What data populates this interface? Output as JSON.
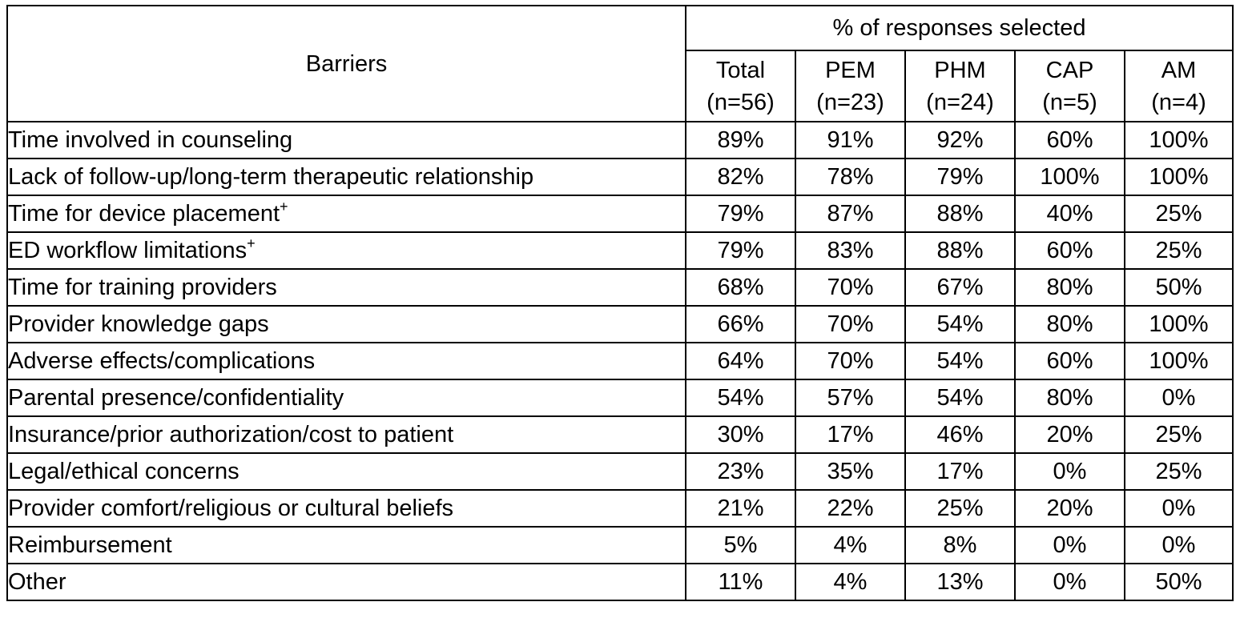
{
  "table": {
    "row_header": "Barriers",
    "group_header": "% of responses selected",
    "columns": [
      {
        "name": "Total",
        "n": "(n=56)"
      },
      {
        "name": "PEM",
        "n": "(n=23)"
      },
      {
        "name": "PHM",
        "n": "(n=24)"
      },
      {
        "name": "CAP",
        "n": "(n=5)"
      },
      {
        "name": "AM",
        "n": "(n=4)"
      }
    ],
    "rows": [
      {
        "label": "Time involved in counseling",
        "mark": "",
        "values": [
          "89%",
          "91%",
          "92%",
          "60%",
          "100%"
        ]
      },
      {
        "label": "Lack of follow-up/long-term therapeutic relationship",
        "mark": "",
        "values": [
          "82%",
          "78%",
          "79%",
          "100%",
          "100%"
        ]
      },
      {
        "label": "Time for device placement",
        "mark": "+",
        "values": [
          "79%",
          "87%",
          "88%",
          "40%",
          "25%"
        ]
      },
      {
        "label": "ED workflow limitations",
        "mark": "+",
        "values": [
          "79%",
          "83%",
          "88%",
          "60%",
          "25%"
        ]
      },
      {
        "label": "Time for training providers",
        "mark": "",
        "values": [
          "68%",
          "70%",
          "67%",
          "80%",
          "50%"
        ]
      },
      {
        "label": "Provider knowledge gaps",
        "mark": "",
        "values": [
          "66%",
          "70%",
          "54%",
          "80%",
          "100%"
        ]
      },
      {
        "label": "Adverse effects/complications",
        "mark": "",
        "values": [
          "64%",
          "70%",
          "54%",
          "60%",
          "100%"
        ]
      },
      {
        "label": "Parental presence/confidentiality",
        "mark": "",
        "values": [
          "54%",
          "57%",
          "54%",
          "80%",
          "0%"
        ]
      },
      {
        "label": "Insurance/prior authorization/cost to patient",
        "mark": "",
        "values": [
          "30%",
          "17%",
          "46%",
          "20%",
          "25%"
        ]
      },
      {
        "label": "Legal/ethical concerns",
        "mark": "",
        "values": [
          "23%",
          "35%",
          "17%",
          "0%",
          "25%"
        ]
      },
      {
        "label": "Provider comfort/religious or cultural beliefs",
        "mark": "",
        "values": [
          "21%",
          "22%",
          "25%",
          "20%",
          "0%"
        ]
      },
      {
        "label": "Reimbursement",
        "mark": "",
        "values": [
          "5%",
          "4%",
          "8%",
          "0%",
          "0%"
        ]
      },
      {
        "label": "Other",
        "mark": "",
        "values": [
          "11%",
          "4%",
          "13%",
          "0%",
          "50%"
        ]
      }
    ]
  }
}
